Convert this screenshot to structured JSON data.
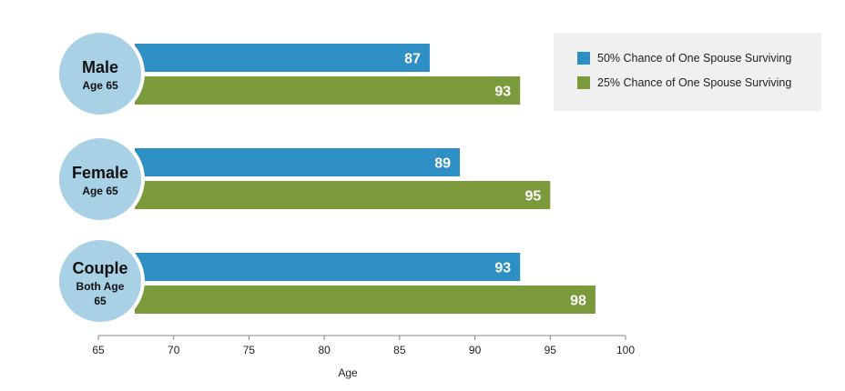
{
  "chart_data": {
    "type": "bar",
    "orientation": "horizontal",
    "categories": [
      {
        "title": "Male",
        "subtitle": [
          "Age 65"
        ]
      },
      {
        "title": "Female",
        "subtitle": [
          "Age 65"
        ]
      },
      {
        "title": "Couple",
        "subtitle": [
          "Both Age",
          "65"
        ]
      }
    ],
    "series": [
      {
        "name": "50% Chance of One Spouse Surviving",
        "color": "#2e8fc4",
        "values": [
          87,
          89,
          93
        ]
      },
      {
        "name": "25% Chance of One Spouse Surviving",
        "color": "#7a9a3c",
        "values": [
          93,
          95,
          98
        ]
      }
    ],
    "xlabel": "Age",
    "xlim": [
      65,
      100
    ],
    "xticks": [
      65,
      70,
      75,
      80,
      85,
      90,
      95,
      100
    ],
    "circle_color": "#a9d1e6",
    "legend_position": "top-right",
    "grid": false
  }
}
